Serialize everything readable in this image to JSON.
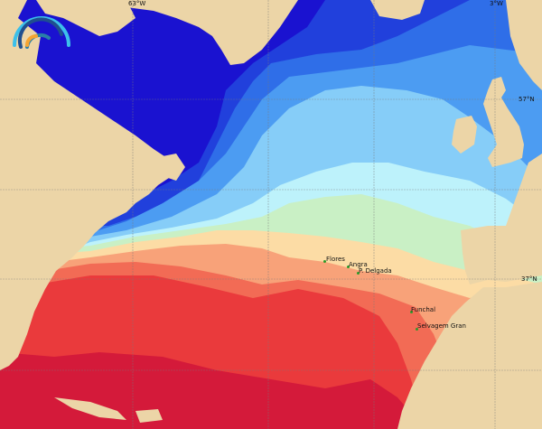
{
  "map": {
    "type": "sea surface temperature",
    "grid_labels": {
      "lon_63w": "63°W",
      "lon_3w": "3°W",
      "lat_57n": "57°N",
      "lat_37n": "37°N"
    },
    "places": [
      {
        "name": "Flores"
      },
      {
        "name": "Angra"
      },
      {
        "name": "P. Delgada"
      },
      {
        "name": "Funchal"
      },
      {
        "name": "Selvagem Gran"
      }
    ],
    "colors": {
      "land": "#ecd5a7",
      "coldest": "#1a12d0",
      "cold": "#2f6ee8",
      "cool": "#7cc6f7",
      "mild": "#c9f0c5",
      "warm": "#f9a77a",
      "hottest": "#d41a3a"
    },
    "logo": {
      "icon": "wave-rainbow-logo"
    }
  }
}
